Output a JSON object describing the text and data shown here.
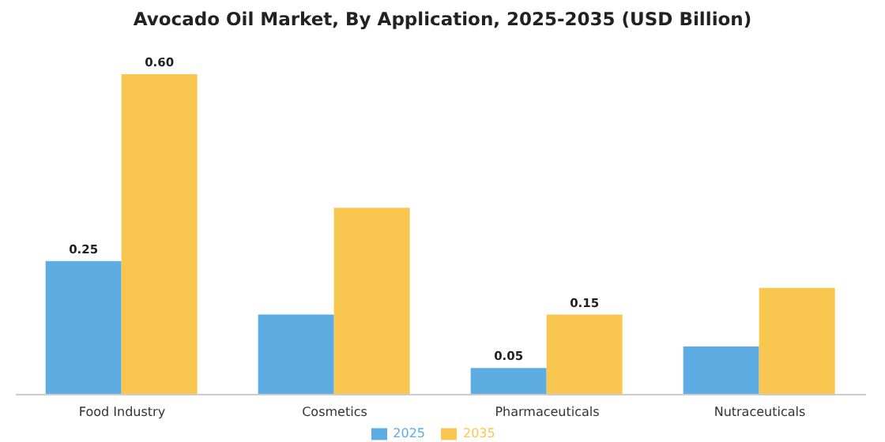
{
  "chart_data": {
    "type": "bar",
    "title": "Avocado Oil Market, By Application, 2025-2035 (USD Billion)",
    "categories": [
      "Food Industry",
      "Cosmetics",
      "Pharmaceuticals",
      "Nutraceuticals"
    ],
    "series": [
      {
        "name": "2025",
        "color": "#5dade2",
        "values": [
          0.25,
          0.15,
          0.05,
          0.09
        ],
        "value_labels": [
          "0.25",
          null,
          "0.05",
          null
        ]
      },
      {
        "name": "2035",
        "color": "#f9c74f",
        "values": [
          0.6,
          0.35,
          0.15,
          0.2
        ],
        "value_labels": [
          "0.60",
          null,
          "0.15",
          null
        ]
      }
    ],
    "legend": "bottom",
    "grid": false
  }
}
